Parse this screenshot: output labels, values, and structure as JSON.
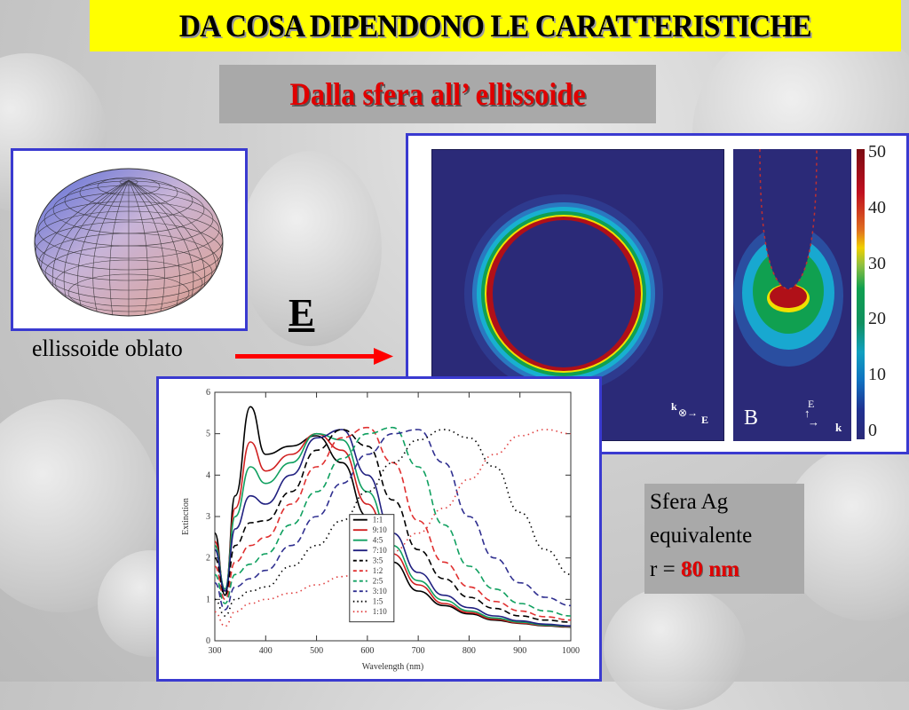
{
  "slide": {
    "title": "DA COSA DIPENDONO LE CARATTERISTICHE",
    "subtitle": "Dalla sfera all’ ellissoide",
    "ellipsoid_caption": "ellissoide oblato",
    "field_vector_label": "E",
    "colors": {
      "title_bg": "#ffff00",
      "subtitle_text": "#e00000",
      "frame_border": "#3a3ad0",
      "arrow": "#ff0000"
    }
  },
  "field_map": {
    "panel_b_label": "B",
    "panel_a_axes": {
      "k": "k",
      "E": "E"
    },
    "panel_b_axes": {
      "E": "E",
      "k": "k"
    },
    "colorbar_ticks": [
      "50",
      "40",
      "30",
      "20",
      "10",
      "0"
    ]
  },
  "sfera_box": {
    "line1": "Sfera Ag",
    "line2": "equivalente",
    "line3_prefix": "r = ",
    "line3_value": "80 nm"
  },
  "chart_data": {
    "type": "line",
    "title": "",
    "xlabel": "Wavelength (nm)",
    "ylabel": "Extinction",
    "xlim": [
      300,
      1000
    ],
    "ylim": [
      0,
      6
    ],
    "xticks": [
      300,
      400,
      500,
      600,
      700,
      800,
      900,
      1000
    ],
    "yticks": [
      0,
      1,
      2,
      3,
      4,
      5,
      6
    ],
    "legend_position": "center",
    "x": [
      300,
      320,
      340,
      370,
      400,
      450,
      500,
      550,
      600,
      650,
      700,
      750,
      800,
      850,
      900,
      950,
      1000
    ],
    "series": [
      {
        "name": "1:1",
        "style": "solid",
        "color": "#000000",
        "values": [
          2.6,
          1.1,
          3.5,
          5.65,
          4.5,
          4.7,
          4.95,
          4.3,
          3.0,
          1.9,
          1.2,
          0.85,
          0.65,
          0.5,
          0.42,
          0.36,
          0.33
        ]
      },
      {
        "name": "9:10",
        "style": "solid",
        "color": "#d02020",
        "values": [
          2.4,
          1.2,
          3.2,
          4.8,
          4.1,
          4.5,
          5.0,
          4.6,
          3.3,
          2.1,
          1.35,
          0.9,
          0.68,
          0.52,
          0.43,
          0.37,
          0.34
        ]
      },
      {
        "name": "4:5",
        "style": "solid",
        "color": "#10a060",
        "values": [
          2.3,
          1.25,
          3.0,
          4.2,
          3.8,
          4.3,
          5.0,
          4.85,
          3.6,
          2.3,
          1.45,
          0.98,
          0.72,
          0.55,
          0.45,
          0.38,
          0.35
        ]
      },
      {
        "name": "7:10",
        "style": "solid",
        "color": "#202080",
        "values": [
          2.2,
          1.2,
          2.7,
          3.5,
          3.3,
          4.0,
          4.9,
          5.1,
          4.0,
          2.6,
          1.65,
          1.1,
          0.8,
          0.6,
          0.48,
          0.4,
          0.36
        ]
      },
      {
        "name": "3:5",
        "style": "dashed",
        "color": "#000000",
        "values": [
          2.0,
          1.1,
          2.3,
          2.85,
          2.9,
          3.6,
          4.6,
          5.1,
          4.7,
          3.4,
          2.2,
          1.5,
          1.05,
          0.78,
          0.6,
          0.5,
          0.45
        ]
      },
      {
        "name": "1:2",
        "style": "dashed",
        "color": "#e03030",
        "values": [
          1.8,
          1.0,
          1.9,
          2.3,
          2.5,
          3.3,
          4.2,
          4.9,
          5.15,
          4.3,
          2.9,
          1.9,
          1.3,
          0.95,
          0.72,
          0.58,
          0.5
        ]
      },
      {
        "name": "2:5",
        "style": "dashed",
        "color": "#10a060",
        "values": [
          1.6,
          0.9,
          1.6,
          1.85,
          2.1,
          2.8,
          3.6,
          4.4,
          5.0,
          5.15,
          4.2,
          2.8,
          1.8,
          1.25,
          0.9,
          0.72,
          0.6
        ]
      },
      {
        "name": "3:10",
        "style": "dashed",
        "color": "#303090",
        "values": [
          1.4,
          0.75,
          1.3,
          1.5,
          1.7,
          2.3,
          3.0,
          3.8,
          4.5,
          5.0,
          5.1,
          4.3,
          3.0,
          2.0,
          1.4,
          1.05,
          0.85
        ]
      },
      {
        "name": "1:5",
        "style": "dotted",
        "color": "#000000",
        "values": [
          1.0,
          0.6,
          1.0,
          1.2,
          1.3,
          1.8,
          2.3,
          2.9,
          3.6,
          4.3,
          4.85,
          5.1,
          4.9,
          4.2,
          3.1,
          2.2,
          1.6
        ]
      },
      {
        "name": "1:10",
        "style": "dotted",
        "color": "#e04040",
        "values": [
          0.7,
          0.35,
          0.7,
          0.9,
          1.0,
          1.15,
          1.35,
          1.55,
          1.8,
          2.15,
          2.6,
          3.2,
          3.9,
          4.5,
          4.95,
          5.1,
          5.0
        ]
      }
    ]
  }
}
